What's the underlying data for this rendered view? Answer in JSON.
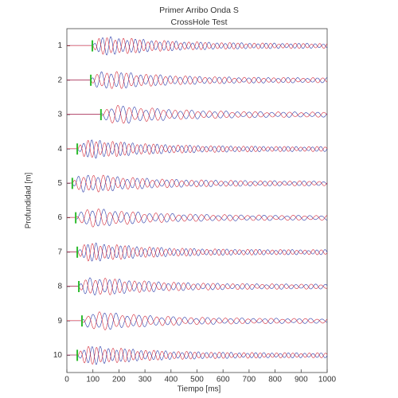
{
  "chart_data": {
    "type": "waveform",
    "title": "Primer Arribo Onda S",
    "subtitle": "CrossHole Test",
    "x_label": "Tiempo [ms]",
    "y_label": "Profundidad [m]",
    "y": [
      1,
      2,
      3,
      4,
      5,
      6,
      7,
      8,
      9,
      10
    ],
    "x": [
      98,
      92,
      131,
      40,
      21,
      34,
      40,
      46,
      58,
      40
    ],
    "xlim": [
      0,
      1000
    ],
    "xticks": [
      0,
      100,
      200,
      300,
      400,
      500,
      600,
      700,
      800,
      900,
      1000
    ],
    "ylim": [
      10.5,
      0.5
    ],
    "yticks": [
      1,
      2,
      3,
      4,
      5,
      6,
      7,
      8,
      9,
      10
    ],
    "trace_colors": [
      "#2a3aa8",
      "#d42a3a"
    ],
    "pick_color": "#2dbb2d"
  }
}
